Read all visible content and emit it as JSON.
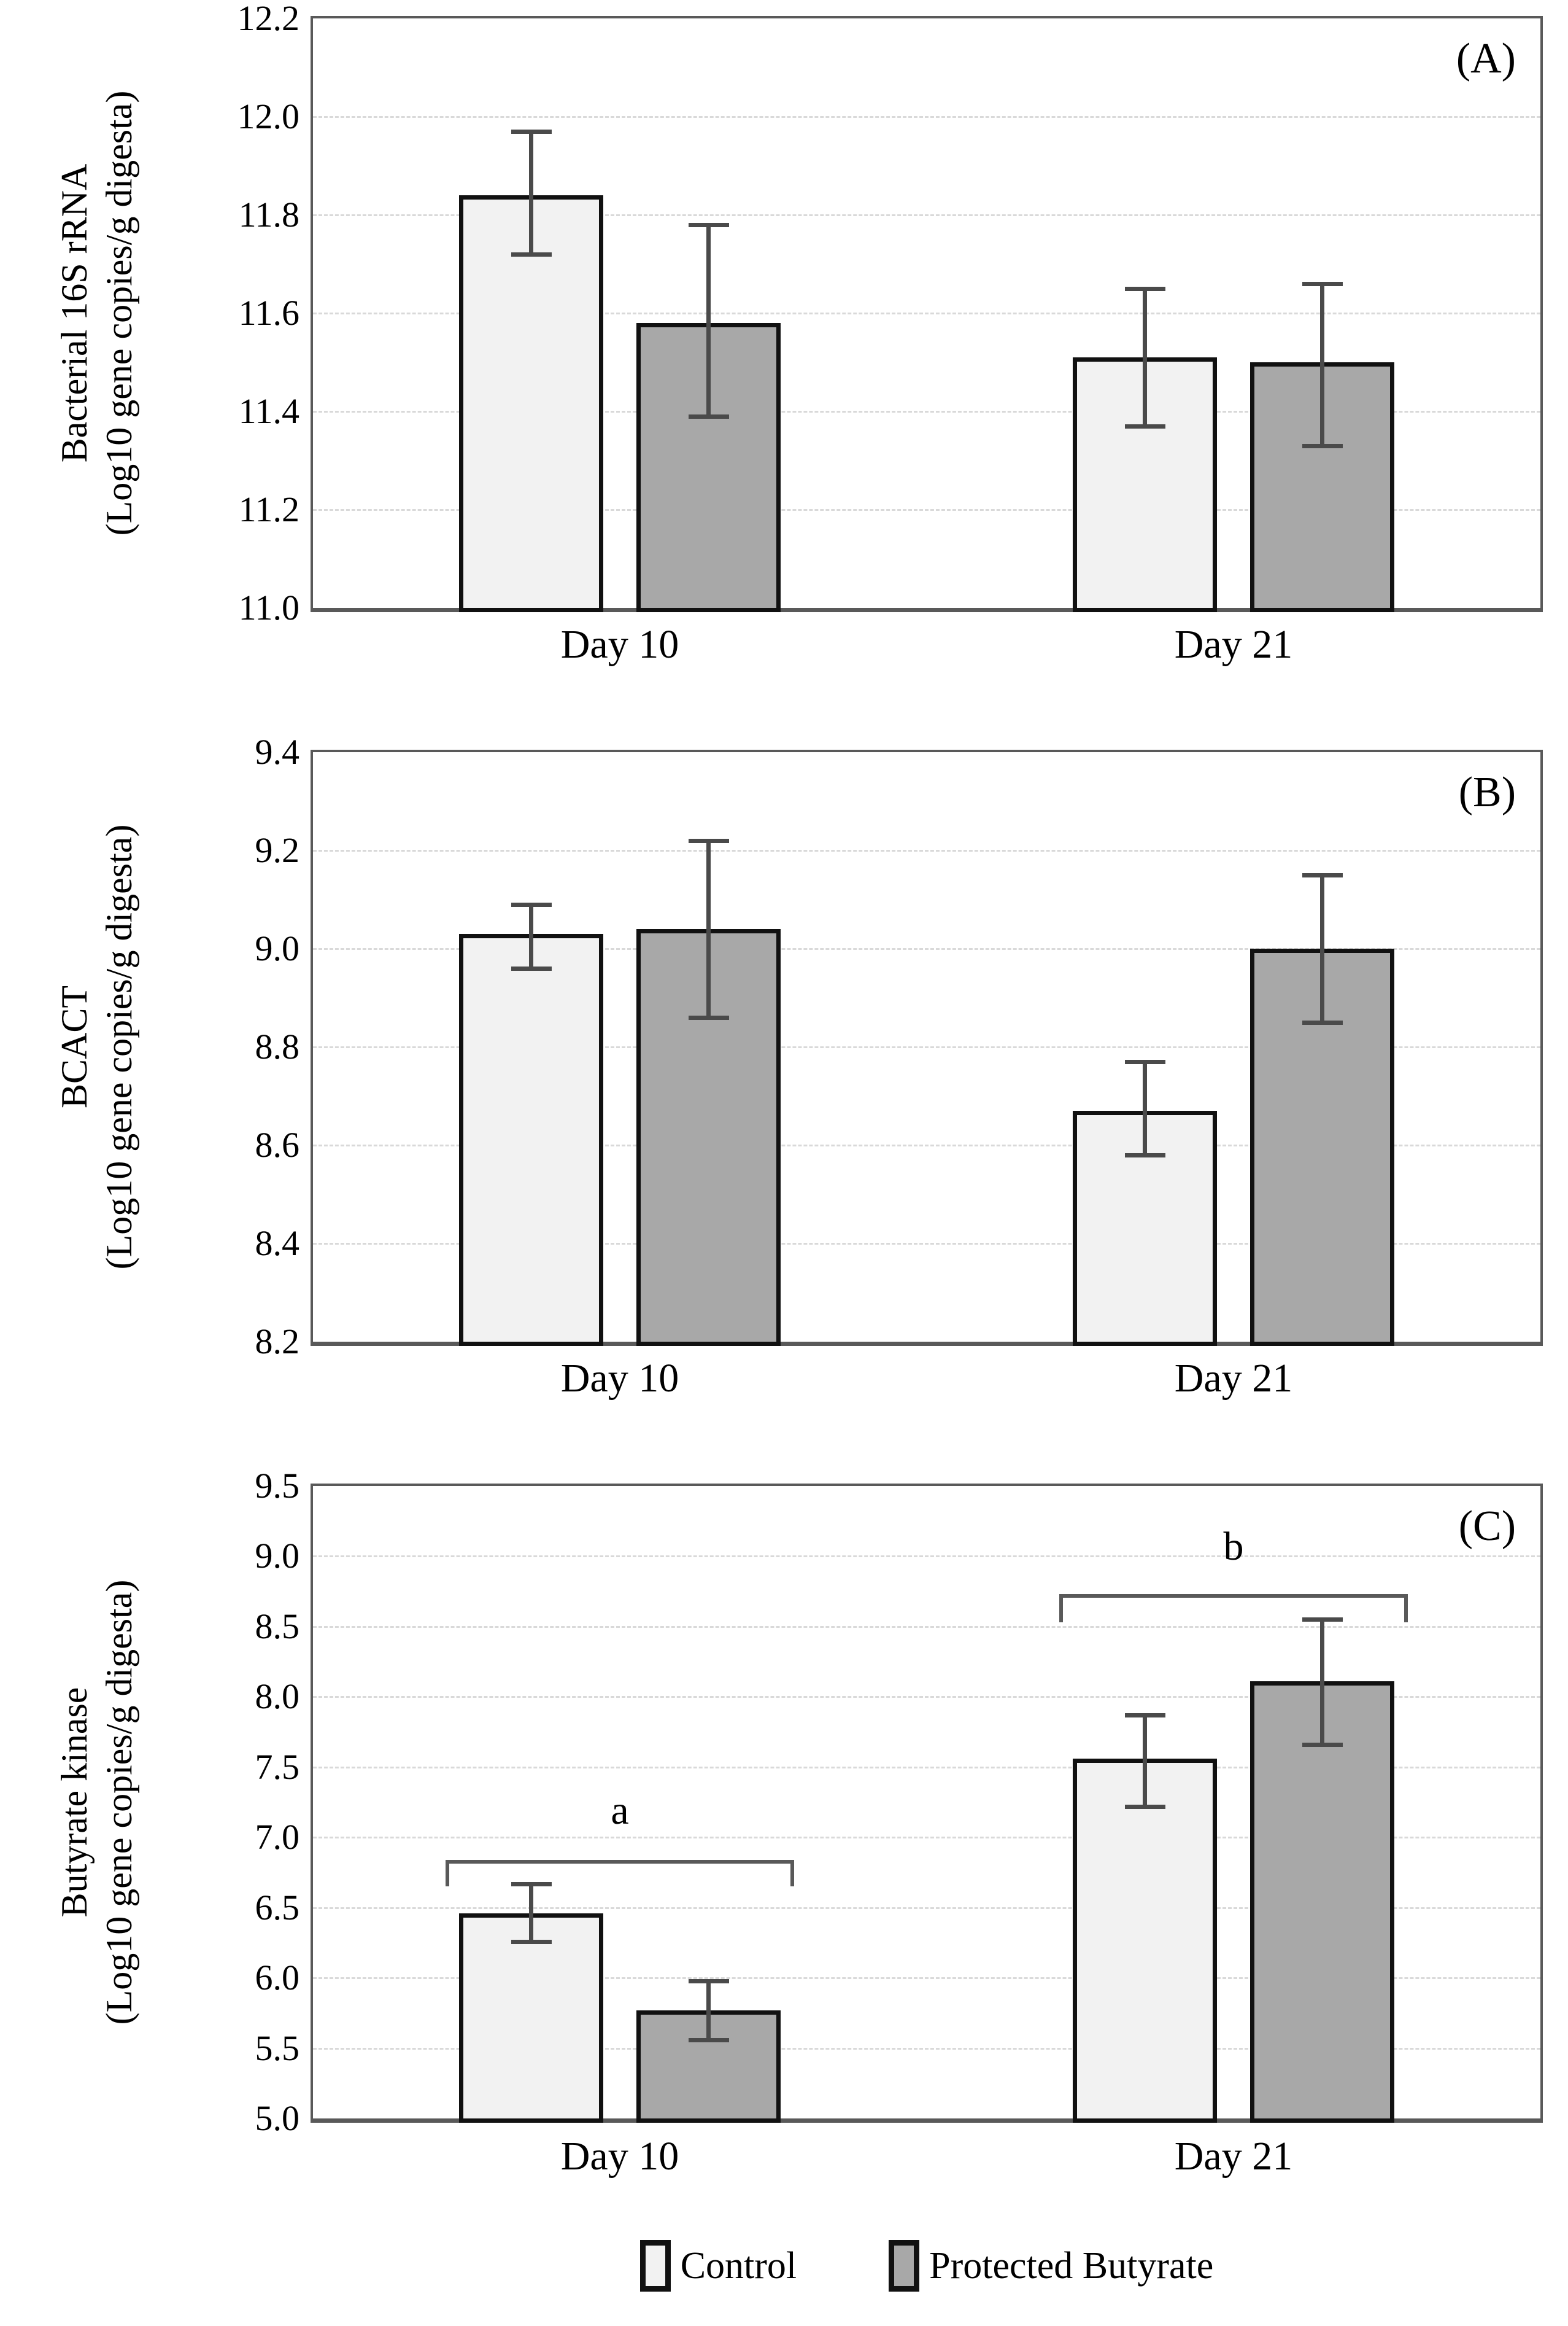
{
  "figure_type": "three-panel grouped bar chart with error bars",
  "colors": {
    "control_fill": "#f2f2f2",
    "protected_butyrate_fill": "#a8a8a8",
    "bar_border": "#111111",
    "error_bar": "#4a4a4a",
    "gridline": "#d9d9d9",
    "plot_border": "#595959",
    "text": "#000000",
    "background": "#ffffff"
  },
  "legend": {
    "items": [
      {
        "label": "Control",
        "fill": "#f2f2f2"
      },
      {
        "label": "Protected Butyrate",
        "fill": "#a8a8a8"
      }
    ]
  },
  "chart_data": [
    {
      "type": "bar",
      "panel_label": "(A)",
      "ylabel_line1": "Bacterial 16S rRNA",
      "ylabel_line2": "(Log10 gene copies/g digesta)",
      "ylim": [
        11.0,
        12.2
      ],
      "ytick_step": 0.2,
      "grid": true,
      "legend_position": "none",
      "categories": [
        "Day 10",
        "Day 21"
      ],
      "series": [
        {
          "name": "Control",
          "fill": "#f2f2f2",
          "values": [
            11.84,
            11.51
          ],
          "err_low": [
            11.72,
            11.37
          ],
          "err_high": [
            11.97,
            11.65
          ]
        },
        {
          "name": "Protected Butyrate",
          "fill": "#a8a8a8",
          "values": [
            11.58,
            11.5
          ],
          "err_low": [
            11.39,
            11.33
          ],
          "err_high": [
            11.78,
            11.66
          ]
        }
      ],
      "brackets": []
    },
    {
      "type": "bar",
      "panel_label": "(B)",
      "ylabel_line1": "BCACT",
      "ylabel_line2": "(Log10 gene copies/g digesta)",
      "ylim": [
        8.2,
        9.4
      ],
      "ytick_step": 0.2,
      "grid": true,
      "legend_position": "none",
      "categories": [
        "Day 10",
        "Day 21"
      ],
      "series": [
        {
          "name": "Control",
          "fill": "#f2f2f2",
          "values": [
            9.03,
            8.67
          ],
          "err_low": [
            8.96,
            8.58
          ],
          "err_high": [
            9.09,
            8.77
          ]
        },
        {
          "name": "Protected Butyrate",
          "fill": "#a8a8a8",
          "values": [
            9.04,
            9.0
          ],
          "err_low": [
            8.86,
            8.85
          ],
          "err_high": [
            9.22,
            9.15
          ]
        }
      ],
      "brackets": []
    },
    {
      "type": "bar",
      "panel_label": "(C)",
      "ylabel_line1": "Butyrate kinase",
      "ylabel_line2": "(Log10 gene copies/g digesta)",
      "ylim": [
        5.0,
        9.5
      ],
      "ytick_step": 0.5,
      "grid": true,
      "legend_position": "below",
      "categories": [
        "Day 10",
        "Day 21"
      ],
      "series": [
        {
          "name": "Control",
          "fill": "#f2f2f2",
          "values": [
            6.46,
            7.56
          ],
          "err_low": [
            6.26,
            7.22
          ],
          "err_high": [
            6.67,
            7.87
          ]
        },
        {
          "name": "Protected Butyrate",
          "fill": "#a8a8a8",
          "values": [
            5.77,
            8.11
          ],
          "err_low": [
            5.56,
            7.66
          ],
          "err_high": [
            5.98,
            8.55
          ]
        }
      ],
      "brackets": [
        {
          "category": 0,
          "label": "a",
          "y_line": 6.84,
          "y_tick_bottom": 6.65,
          "y_label": 7.18
        },
        {
          "category": 1,
          "label": "b",
          "y_line": 8.73,
          "y_tick_bottom": 8.53,
          "y_label": 9.06
        }
      ]
    }
  ]
}
